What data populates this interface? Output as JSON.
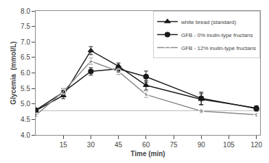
{
  "chart_data": {
    "type": "line",
    "xlabel": "Time (min)",
    "ylabel": "Glycemia  (mmol/L)",
    "x": [
      0,
      15,
      30,
      45,
      60,
      90,
      120
    ],
    "series": [
      {
        "name": "white bread (standard)",
        "color": "#1a1a1a",
        "marker": "triangle-up",
        "values": [
          4.78,
          5.27,
          6.72,
          6.22,
          5.6,
          5.15,
          4.87
        ],
        "errors": [
          0.05,
          0.1,
          0.13,
          0.1,
          0.15,
          0.18,
          0.07
        ]
      },
      {
        "name": "GFB - 0% inulin-type fructans",
        "color": "#1a1a1a",
        "marker": "circle",
        "values": [
          4.8,
          5.38,
          6.05,
          6.13,
          5.88,
          5.18,
          4.85
        ],
        "errors": [
          0.05,
          0.1,
          0.12,
          0.1,
          0.18,
          0.2,
          0.08
        ]
      },
      {
        "name": "GFB - 12% inulin-type fructans",
        "color": "#888888",
        "marker": "circle-open",
        "values": [
          4.63,
          5.4,
          6.38,
          6.05,
          5.3,
          4.77,
          4.65
        ],
        "errors": [
          0.04,
          0.1,
          0.1,
          0.1,
          0.09,
          0.06,
          0.06
        ]
      }
    ],
    "xlim": [
      0,
      122
    ],
    "ylim": [
      4.0,
      8.0
    ],
    "xticks": [
      15,
      30,
      45,
      60,
      75,
      90,
      105,
      120
    ],
    "yticks": [
      {
        "value": 4.0,
        "label": "4.0"
      },
      4.5,
      {
        "value": 5.0,
        "label": "5.0"
      },
      5.5,
      {
        "value": 6.0,
        "label": "6.0"
      },
      6.5,
      {
        "value": 7.0,
        "label": "7.0"
      },
      7.5,
      {
        "value": 8.0,
        "label": "8.0"
      }
    ],
    "reference_line": {
      "y": 4.78,
      "color": "#bbbbbb"
    },
    "grid": false,
    "legend": "upper right"
  }
}
